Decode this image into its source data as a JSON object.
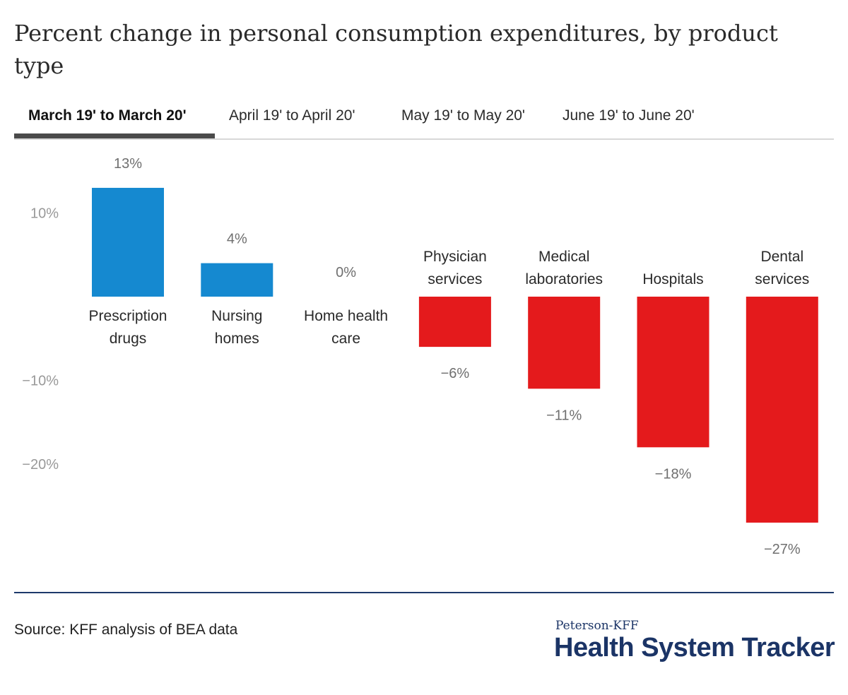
{
  "title": "Percent change in personal consumption expenditures, by product type",
  "tabs": [
    {
      "label": "March 19' to March 20'",
      "active": true
    },
    {
      "label": "April 19' to April 20'",
      "active": false
    },
    {
      "label": "May 19' to May 20'",
      "active": false
    },
    {
      "label": "June 19' to June 20'",
      "active": false
    }
  ],
  "chart_data": {
    "type": "bar",
    "categories": [
      [
        "Prescription",
        "drugs"
      ],
      [
        "Nursing",
        "homes"
      ],
      [
        "Home health",
        "care"
      ],
      [
        "Physician",
        "services"
      ],
      [
        "Medical",
        "laboratories"
      ],
      [
        "Hospitals"
      ],
      [
        "Dental",
        "services"
      ]
    ],
    "values": [
      13,
      4,
      0,
      -6,
      -11,
      -18,
      -27
    ],
    "value_labels": [
      "13%",
      "4%",
      "0%",
      "−6%",
      "−11%",
      "−18%",
      "−27%"
    ],
    "yticks": [
      10,
      -10,
      -20
    ],
    "ytick_labels": [
      "10%",
      "−10%",
      "−20%"
    ],
    "ylim": [
      -28,
      15
    ],
    "grid": false,
    "colors": {
      "positive": "#1589d0",
      "negative": "#e41a1c"
    }
  },
  "source": "Source: KFF analysis of BEA data",
  "logo": {
    "line1": "Peterson-KFF",
    "line2": "Health System Tracker"
  }
}
